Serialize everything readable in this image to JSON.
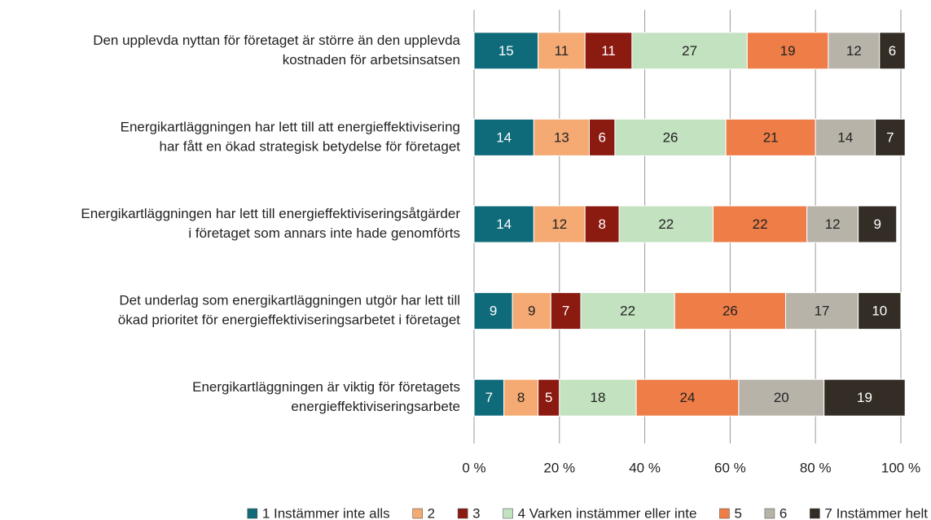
{
  "chart_data": {
    "type": "stacked_barh",
    "categories": [
      [
        "Den upplevda nyttan för företaget är större än den upplevda",
        "kostnaden för arbetsinsatsen"
      ],
      [
        "Energikartläggningen har lett till att energieffektivisering",
        "har fått en ökad strategisk betydelse för företaget"
      ],
      [
        "Energikartläggningen har lett till energieffektiviseringsåtgärder",
        "i företaget som annars inte hade genomförts"
      ],
      [
        "Det underlag som energikartläggningen utgör har lett till",
        "ökad prioritet för energieffektiviseringsarbetet i företaget"
      ],
      [
        "Energikartläggningen är viktig för företagets",
        "energieffektiviseringsarbete"
      ]
    ],
    "series": [
      {
        "name": "1 Instämmer inte alls",
        "color": "#0f6b7a",
        "values": [
          15,
          14,
          14,
          9,
          7
        ]
      },
      {
        "name": "2",
        "color": "#f4aa72",
        "values": [
          11,
          13,
          12,
          9,
          8
        ]
      },
      {
        "name": "3",
        "color": "#8b1a10",
        "values": [
          11,
          6,
          8,
          7,
          5
        ]
      },
      {
        "name": "4 Varken instämmer eller inte",
        "color": "#c3e2c0",
        "values": [
          27,
          26,
          22,
          22,
          18
        ]
      },
      {
        "name": "5",
        "color": "#ef7d48",
        "values": [
          19,
          21,
          22,
          26,
          24
        ]
      },
      {
        "name": "6",
        "color": "#b8b3a9",
        "values": [
          12,
          14,
          12,
          17,
          20
        ]
      },
      {
        "name": "7 Instämmer helt",
        "color": "#332d26",
        "values": [
          6,
          7,
          9,
          10,
          19
        ]
      }
    ],
    "xlim": [
      0,
      100
    ],
    "xticks": [
      {
        "value": 0,
        "label": "0 %"
      },
      {
        "value": 20,
        "label": "20 %"
      },
      {
        "value": 40,
        "label": "40 %"
      },
      {
        "value": 60,
        "label": "60 %"
      },
      {
        "value": 80,
        "label": "80 %"
      },
      {
        "value": 100,
        "label": "100 %"
      }
    ],
    "grid": true,
    "legend": "bottom"
  }
}
